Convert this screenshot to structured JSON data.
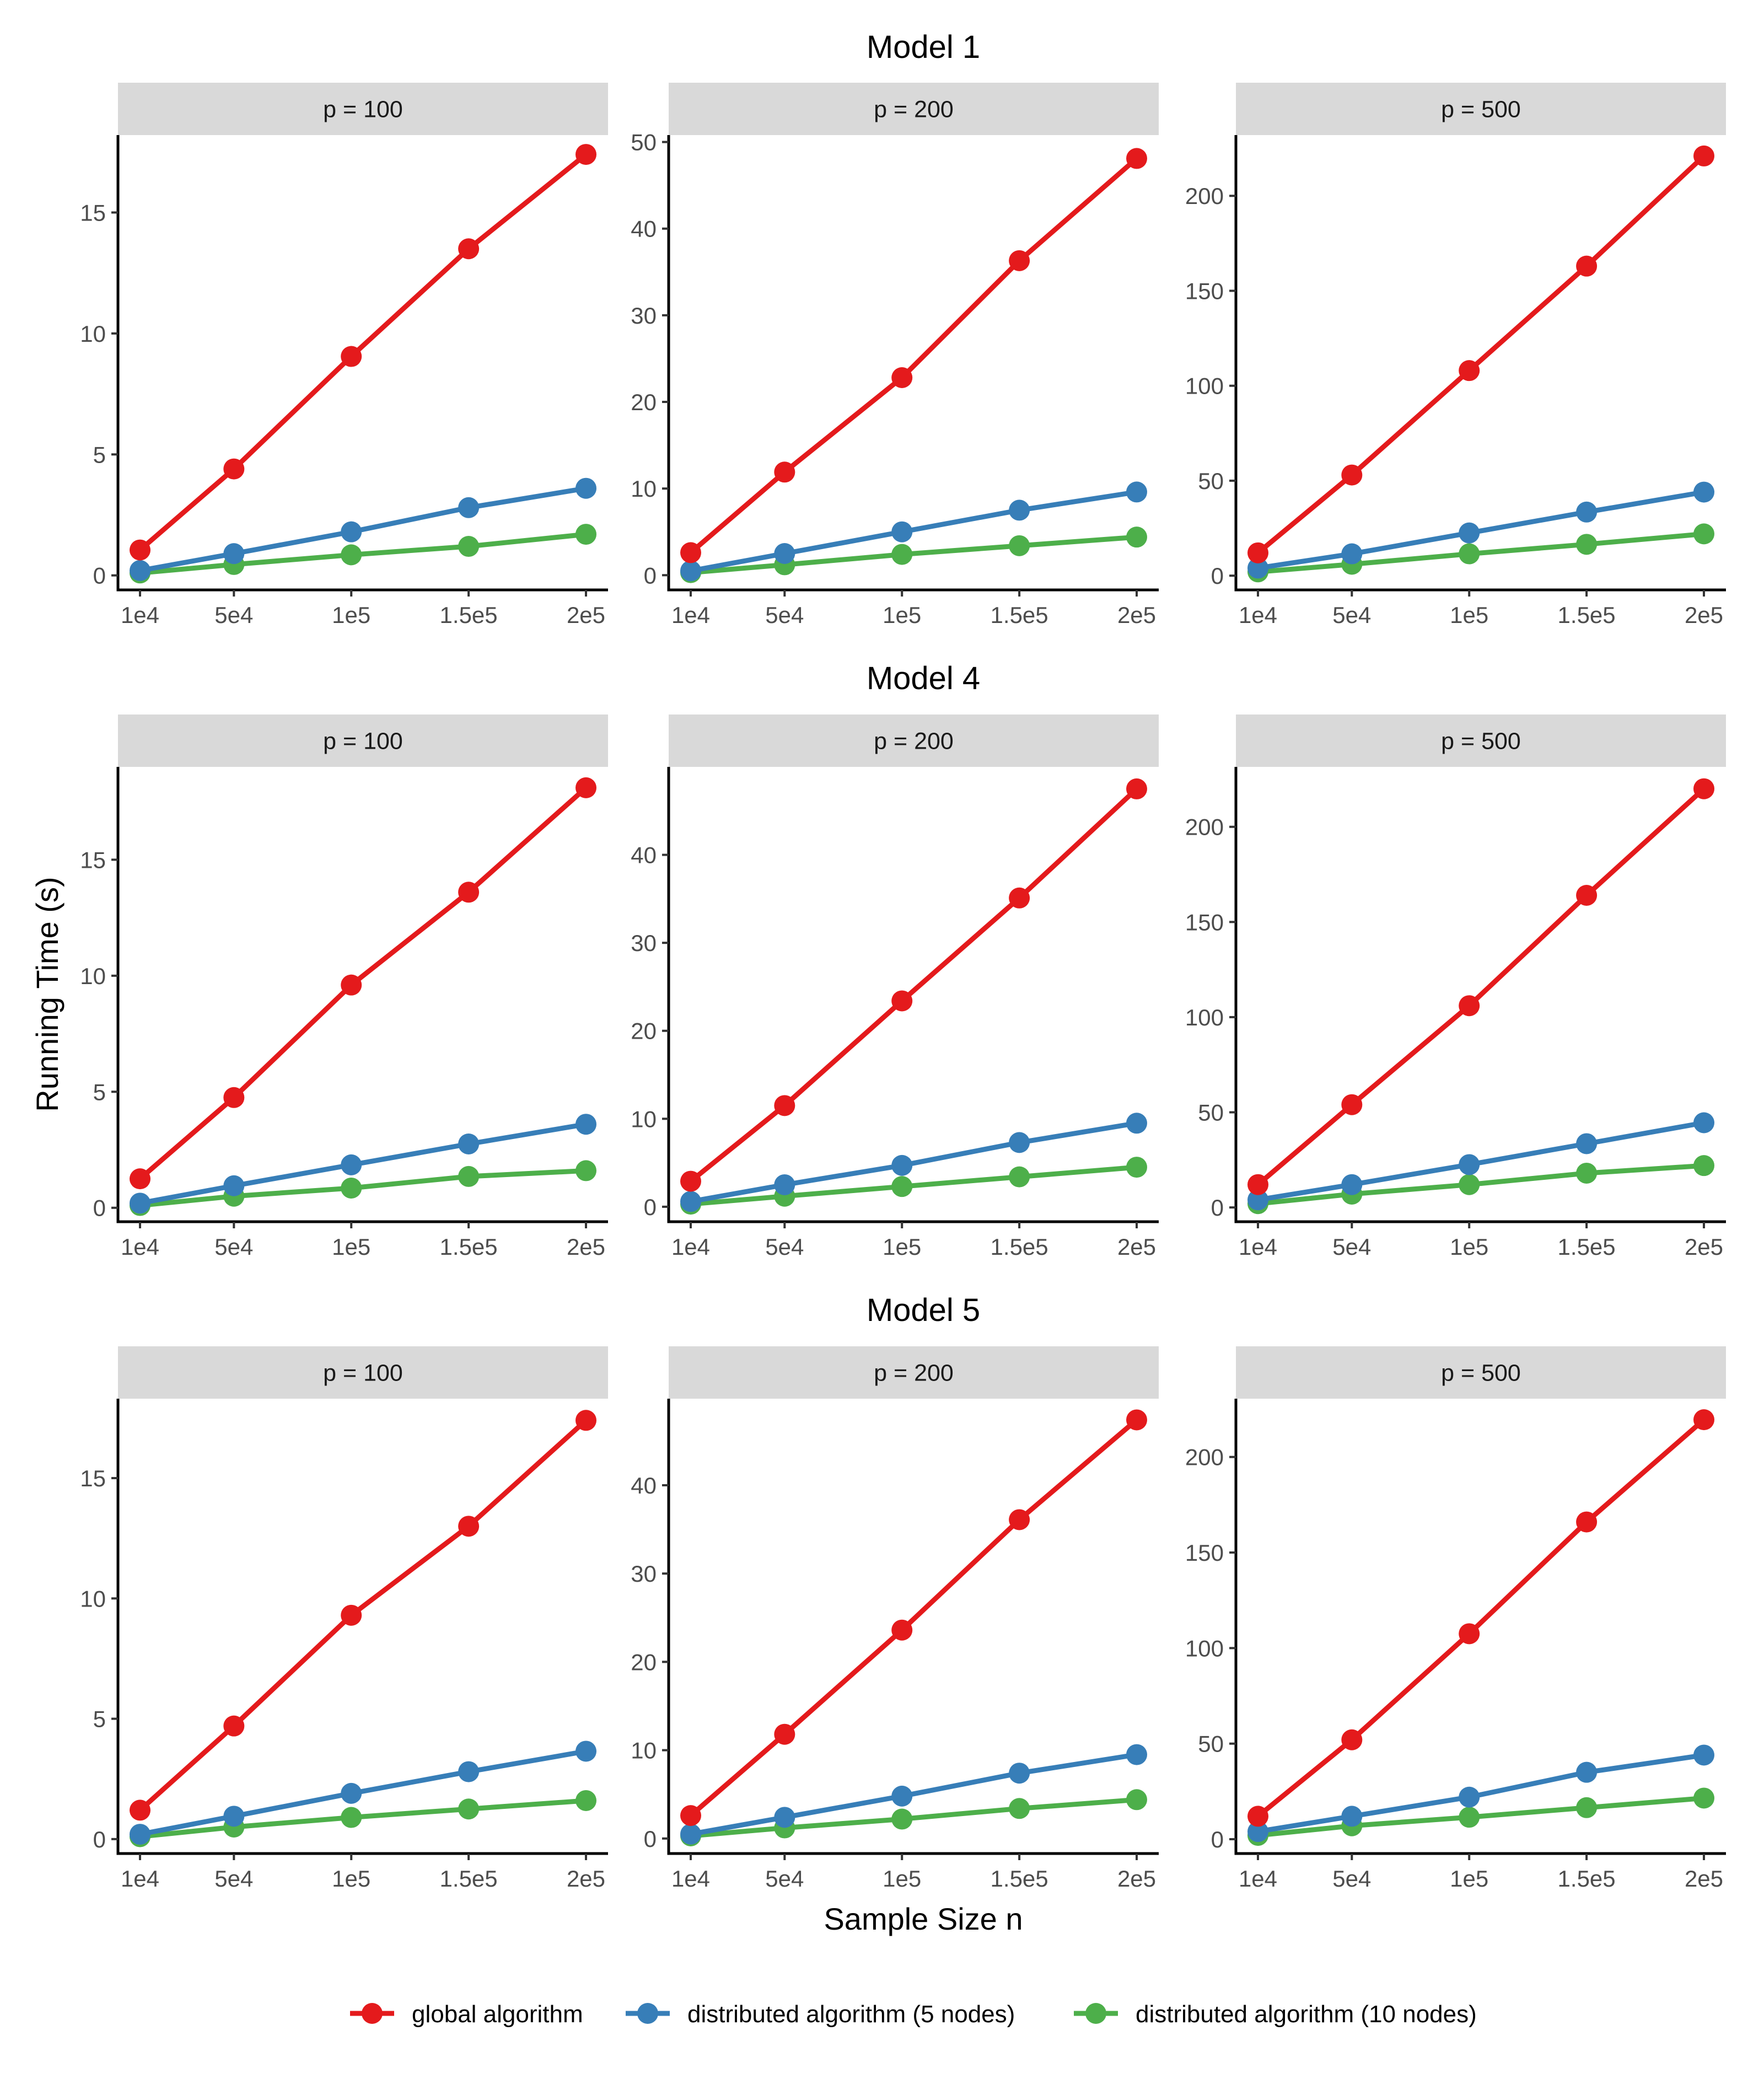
{
  "chart_data": {
    "type": "line",
    "layout": "faceted",
    "x_categories": [
      "1e4",
      "5e4",
      "1e5",
      "1.5e5",
      "2e5"
    ],
    "x_values": [
      10000,
      50000,
      100000,
      150000,
      200000
    ],
    "xlabel": "Sample Size n",
    "ylabel": "Running Time (s)",
    "legend_position": "bottom",
    "grid": false,
    "series_meta": [
      {
        "name": "global algorithm",
        "color": "#E41A1C"
      },
      {
        "name": "distributed algorithm (5 nodes)",
        "color": "#377EB8"
      },
      {
        "name": "distributed algorithm (10 nodes)",
        "color": "#4DAF4A"
      }
    ],
    "rows": [
      {
        "title": "Model 1",
        "panels": [
          {
            "label": "p = 100",
            "ylim": [
              -0.6,
              18.2
            ],
            "yticks": [
              0,
              5,
              10,
              15
            ],
            "series": [
              [
                1.05,
                4.4,
                9.05,
                13.5,
                17.4
              ],
              [
                0.2,
                0.9,
                1.8,
                2.8,
                3.6
              ],
              [
                0.1,
                0.45,
                0.85,
                1.2,
                1.7
              ]
            ]
          },
          {
            "label": "p = 200",
            "ylim": [
              -1.7,
              50.8
            ],
            "yticks": [
              0,
              10,
              20,
              30,
              40,
              50
            ],
            "series": [
              [
                2.6,
                11.9,
                22.8,
                36.3,
                48.1
              ],
              [
                0.5,
                2.5,
                5.0,
                7.5,
                9.6
              ],
              [
                0.3,
                1.2,
                2.4,
                3.4,
                4.4
              ]
            ]
          },
          {
            "label": "p = 500",
            "ylim": [
              -7.5,
              232
            ],
            "yticks": [
              0,
              50,
              100,
              150,
              200
            ],
            "series": [
              [
                12,
                53,
                108,
                163,
                221
              ],
              [
                4,
                11.5,
                22.5,
                33.5,
                44
              ],
              [
                2,
                6,
                11.5,
                16.5,
                22
              ]
            ]
          }
        ]
      },
      {
        "title": "Model 4",
        "panels": [
          {
            "label": "p = 100",
            "ylim": [
              -0.6,
              19.0
            ],
            "yticks": [
              0,
              5,
              10,
              15
            ],
            "series": [
              [
                1.25,
                4.75,
                9.6,
                13.6,
                18.1
              ],
              [
                0.2,
                0.95,
                1.85,
                2.75,
                3.6
              ],
              [
                0.1,
                0.5,
                0.85,
                1.35,
                1.6
              ]
            ]
          },
          {
            "label": "p = 200",
            "ylim": [
              -1.7,
              50.0
            ],
            "yticks": [
              0,
              10,
              20,
              30,
              40
            ],
            "series": [
              [
                2.9,
                11.5,
                23.4,
                35.1,
                47.5
              ],
              [
                0.6,
                2.5,
                4.7,
                7.3,
                9.5
              ],
              [
                0.3,
                1.2,
                2.3,
                3.4,
                4.5
              ]
            ]
          },
          {
            "label": "p = 500",
            "ylim": [
              -7.5,
              231.5
            ],
            "yticks": [
              0,
              50,
              100,
              150,
              200
            ],
            "series": [
              [
                12,
                54,
                106,
                164,
                220
              ],
              [
                4,
                12,
                22.5,
                33.5,
                44.5
              ],
              [
                2,
                7,
                12,
                18,
                22
              ]
            ]
          }
        ]
      },
      {
        "title": "Model 5",
        "panels": [
          {
            "label": "p = 100",
            "ylim": [
              -0.6,
              18.3
            ],
            "yticks": [
              0,
              5,
              10,
              15
            ],
            "series": [
              [
                1.2,
                4.7,
                9.3,
                13.0,
                17.4
              ],
              [
                0.2,
                0.95,
                1.9,
                2.8,
                3.65
              ],
              [
                0.1,
                0.5,
                0.9,
                1.25,
                1.6
              ]
            ]
          },
          {
            "label": "p = 200",
            "ylim": [
              -1.7,
              49.8
            ],
            "yticks": [
              0,
              10,
              20,
              30,
              40
            ],
            "series": [
              [
                2.6,
                11.8,
                23.6,
                36.1,
                47.4
              ],
              [
                0.5,
                2.4,
                4.8,
                7.4,
                9.5
              ],
              [
                0.3,
                1.2,
                2.2,
                3.4,
                4.4
              ]
            ]
          },
          {
            "label": "p = 500",
            "ylim": [
              -7.5,
              230.5
            ],
            "yticks": [
              0,
              50,
              100,
              150,
              200
            ],
            "series": [
              [
                12,
                52,
                107.5,
                166,
                219.5
              ],
              [
                4,
                12,
                22,
                35,
                44
              ],
              [
                2,
                7,
                11.5,
                16.5,
                21.5
              ]
            ]
          }
        ]
      }
    ]
  }
}
